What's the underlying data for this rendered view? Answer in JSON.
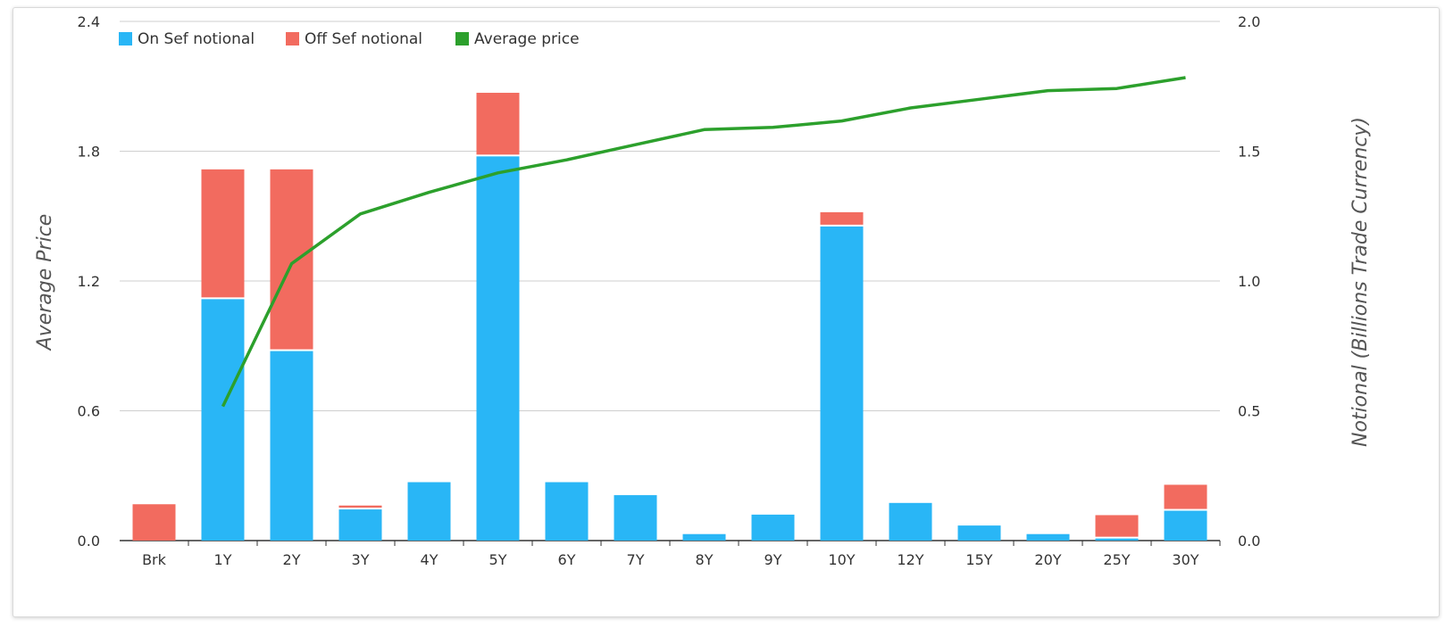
{
  "chart_data": {
    "type": "bar",
    "stacked": true,
    "categories": [
      "Brk",
      "1Y",
      "2Y",
      "3Y",
      "4Y",
      "5Y",
      "6Y",
      "7Y",
      "8Y",
      "9Y",
      "10Y",
      "12Y",
      "15Y",
      "20Y",
      "25Y",
      "30Y"
    ],
    "series": [
      {
        "name": "On Sef notional",
        "type": "bar",
        "axis": "right",
        "color": "#29b6f6",
        "values": [
          0,
          0.93,
          0.73,
          0.12,
          0.225,
          1.48,
          0.225,
          0.175,
          0.025,
          0.1,
          1.21,
          0.145,
          0.058,
          0.025,
          0.008,
          0.115
        ]
      },
      {
        "name": "Off Sef notional",
        "type": "bar",
        "axis": "right",
        "color": "#f26b5f",
        "values": [
          0.14,
          0.5,
          0.7,
          0.015,
          0,
          0.245,
          0,
          0,
          0,
          0,
          0.055,
          0,
          0,
          0,
          0.09,
          0.1
        ]
      },
      {
        "name": "Average price",
        "type": "line",
        "axis": "left",
        "color": "#2ca02c",
        "values": [
          null,
          0.62,
          1.28,
          1.51,
          1.61,
          1.7,
          1.76,
          1.83,
          1.9,
          1.91,
          1.94,
          2.0,
          2.04,
          2.08,
          2.09,
          2.14
        ]
      }
    ],
    "left_axis": {
      "label": "Average Price",
      "ylim": [
        0,
        2.4
      ],
      "ticks": [
        "0.0",
        "0.6",
        "1.2",
        "1.8",
        "2.4"
      ]
    },
    "right_axis": {
      "label": "Notional (Billions Trade Currency)",
      "ylim": [
        0,
        2.0
      ],
      "ticks": [
        "0.0",
        "0.5",
        "1.0",
        "1.5",
        "2.0"
      ]
    },
    "legend": {
      "position": "top-left"
    },
    "grid": true
  }
}
